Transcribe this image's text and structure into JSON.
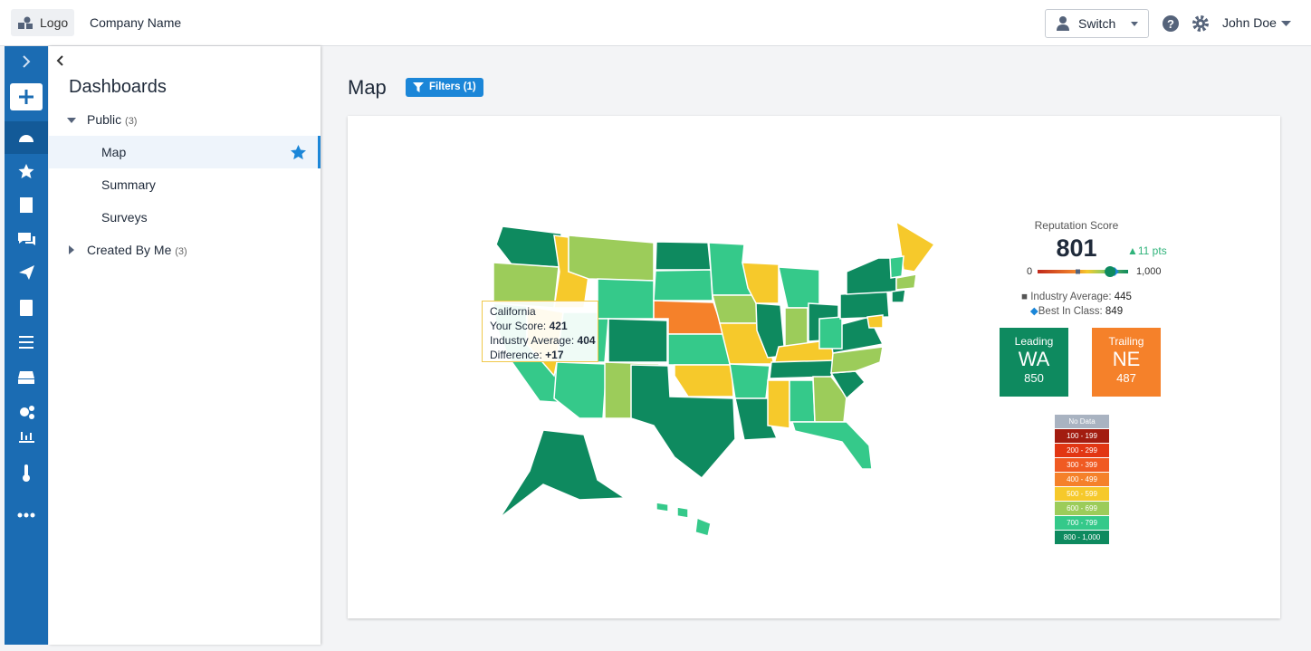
{
  "header": {
    "logo": "Logo",
    "company": "Company Name",
    "switch": "Switch",
    "user": "John Doe"
  },
  "sidebar": {
    "title": "Dashboards",
    "groups": [
      {
        "label": "Public",
        "count": "(3)",
        "items": [
          "Map",
          "Summary",
          "Surveys"
        ]
      },
      {
        "label": "Created By Me",
        "count": "(3)"
      }
    ]
  },
  "page": {
    "title": "Map",
    "filters": "Filters (1)"
  },
  "tooltip": {
    "state": "California",
    "rows": [
      {
        "label": "Your Score:",
        "value": 421
      },
      {
        "label": "Industry Average:",
        "value": 404
      },
      {
        "label": "Difference:",
        "value": "+17"
      }
    ]
  },
  "score": {
    "label": "Reputation Score",
    "value": 801,
    "change": "11 pts",
    "min": 0,
    "max": {
      "value": 1000,
      "label": "1,000"
    },
    "industry_average": {
      "label": "Industry Average:",
      "value": 445
    },
    "best_in_class": {
      "label": "Best In Class:",
      "value": 849
    }
  },
  "leading": {
    "label": "Leading",
    "state": "WA",
    "value": 850
  },
  "trailing": {
    "label": "Trailing",
    "state": "NE",
    "value": 487
  },
  "legend": [
    "No Data",
    "100 - 199",
    "200 - 299",
    "300 - 399",
    "400 - 499",
    "500 - 599",
    "600 - 699",
    "700 - 799",
    "800 - 1,000"
  ]
}
